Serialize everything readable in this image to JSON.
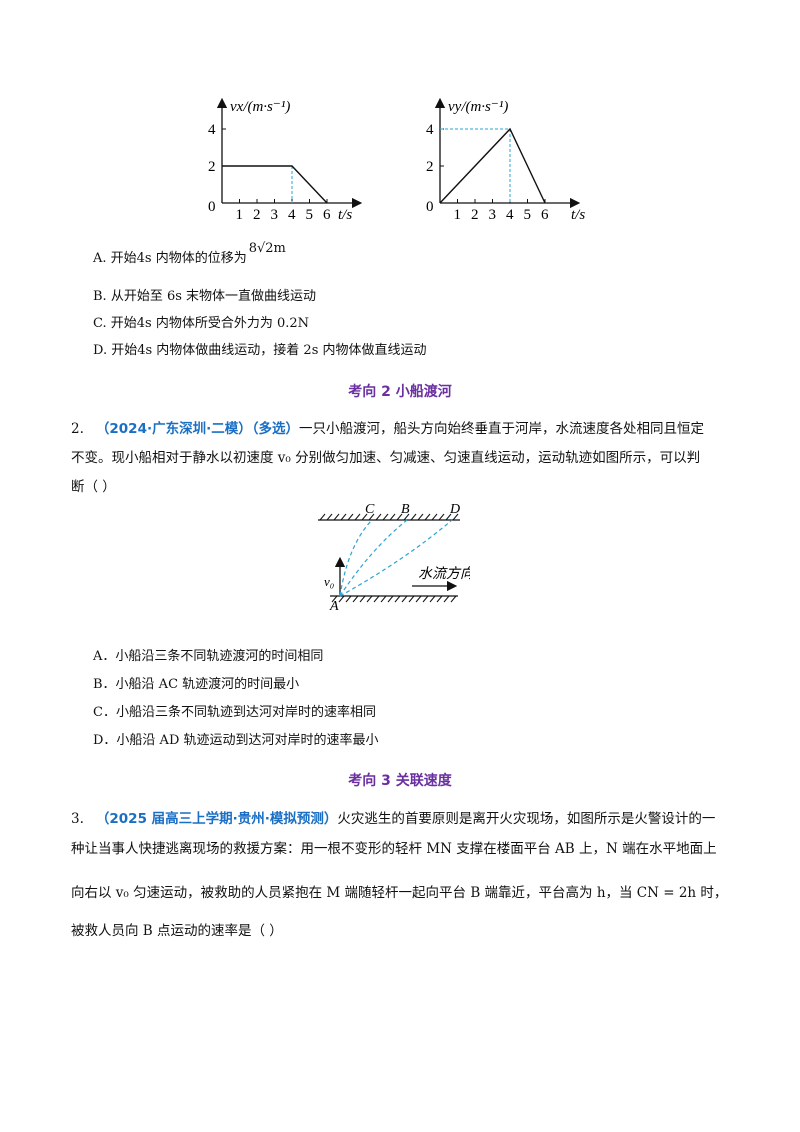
{
  "graph_vx": {
    "ylabel": "vx/(m·s⁻¹)",
    "xlabel": "t/s",
    "origin": "0",
    "x_ticks": [
      "1",
      "2",
      "3",
      "4",
      "5",
      "6"
    ],
    "y_ticks": [
      "2",
      "4"
    ]
  },
  "graph_vy": {
    "ylabel": "vy/(m·s⁻¹)",
    "xlabel": "t/s",
    "origin": "0",
    "x_ticks": [
      "1",
      "2",
      "3",
      "4",
      "5",
      "6"
    ],
    "y_ticks": [
      "2",
      "4"
    ]
  },
  "chart_data": [
    {
      "type": "line",
      "ylabel": "vx/(m·s⁻¹)",
      "xlabel": "t/s",
      "x": [
        0,
        4,
        6
      ],
      "y": [
        2,
        2,
        0
      ],
      "xlim": [
        0,
        6
      ],
      "ylim": [
        0,
        4
      ]
    },
    {
      "type": "line",
      "ylabel": "vy/(m·s⁻¹)",
      "xlabel": "t/s",
      "x": [
        0,
        4,
        6
      ],
      "y": [
        0,
        4,
        0
      ],
      "xlim": [
        0,
        6
      ],
      "ylim": [
        0,
        4
      ]
    }
  ],
  "q1_options": {
    "a_prefix": "A.  开始4s 内物体的位移为",
    "a_value": "8√2m",
    "b": "B.  从开始至 6s 末物体一直做曲线运动",
    "c": "C.  开始4s 内物体所受合外力为 0.2N",
    "d": "D.  开始4s 内物体做曲线运动，接着 2s 内物体做直线运动"
  },
  "heading2": "考向 2    小船渡河",
  "q2": {
    "number": "2.",
    "source": "（2024·广东深圳·二模）（多选）",
    "text1": "一只小船渡河，船头方向始终垂直于河岸，水流速度各处相同且恒定",
    "text2": "不变。现小船相对于静水以初速度 v₀ 分别做匀加速、匀减速、匀速直线运动，运动轨迹如图所示，可以判",
    "text3": "断（        ）"
  },
  "river_figure": {
    "labels": [
      "C",
      "B",
      "D"
    ],
    "start_label": "A",
    "v0_label": "v₀",
    "flow_label": "水流方向"
  },
  "q2_options": {
    "a": "A．小船沿三条不同轨迹渡河的时间相同",
    "b": "B．小船沿 AC 轨迹渡河的时间最小",
    "c": "C．小船沿三条不同轨迹到达河对岸时的速率相同",
    "d": "D．小船沿 AD 轨迹运动到达河对岸时的速率最小"
  },
  "heading3": "考向 3    关联速度",
  "q3": {
    "number": "3.",
    "source": "（2025 届高三上学期·贵州·模拟预测）",
    "line1": "火灾逃生的首要原则是离开火灾现场，如图所示是火警设计的一",
    "line2": "种让当事人快捷逃离现场的救援方案：用一根不变形的轻杆 MN 支撑在楼面平台 AB 上，N 端在水平地面上",
    "line3": "向右以 v₀ 匀速运动，被救助的人员紧抱在 M 端随轻杆一起向平台 B 端靠近，平台高为 h，当 CN = 2h 时，",
    "line4": "被救人员向 B 点运动的速率是（    ）"
  }
}
